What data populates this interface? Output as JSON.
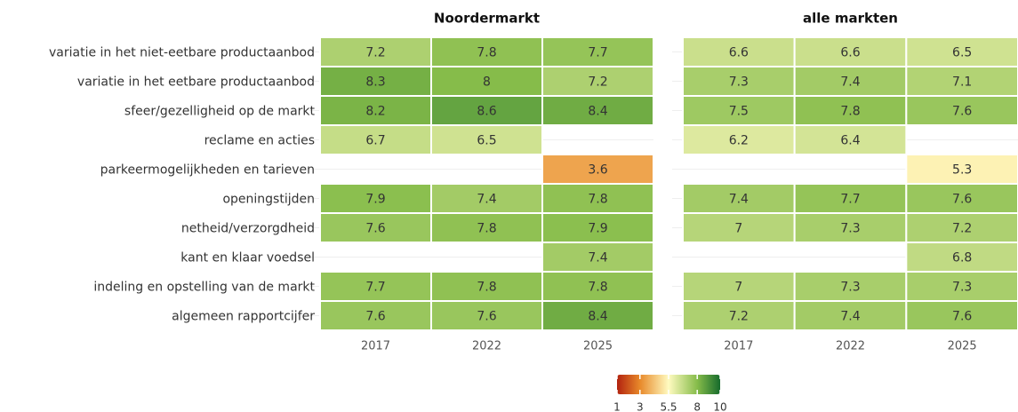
{
  "chart_data": [
    {
      "type": "heatmap",
      "title": "Noordermarkt",
      "categories": [
        "variatie in het niet-eetbare productaanbod",
        "variatie in het eetbare productaanbod",
        "sfeer/gezelligheid op de markt",
        "reclame en acties",
        "parkeermogelijkheden en tarieven",
        "openingstijden",
        "netheid/verzorgdheid",
        "kant en klaar voedsel",
        "indeling en opstelling van de markt",
        "algemeen rapportcijfer"
      ],
      "x": [
        "2017",
        "2022",
        "2025"
      ],
      "values": [
        [
          7.2,
          7.8,
          7.7
        ],
        [
          8.3,
          8,
          7.2
        ],
        [
          8.2,
          8.6,
          8.4
        ],
        [
          6.7,
          6.5,
          null
        ],
        [
          null,
          null,
          3.6
        ],
        [
          7.9,
          7.4,
          7.8
        ],
        [
          7.6,
          7.8,
          7.9
        ],
        [
          null,
          null,
          7.4
        ],
        [
          7.7,
          7.8,
          7.8
        ],
        [
          7.6,
          7.6,
          8.4
        ]
      ],
      "grid": true
    },
    {
      "type": "heatmap",
      "title": "alle markten",
      "x": [
        "2017",
        "2022",
        "2025"
      ],
      "values": [
        [
          6.6,
          6.6,
          6.5
        ],
        [
          7.3,
          7.4,
          7.1
        ],
        [
          7.5,
          7.8,
          7.6
        ],
        [
          6.2,
          6.4,
          null
        ],
        [
          null,
          null,
          5.3
        ],
        [
          7.4,
          7.7,
          7.6
        ],
        [
          7,
          7.3,
          7.2
        ],
        [
          null,
          null,
          6.8
        ],
        [
          7,
          7.3,
          7.3
        ],
        [
          7.2,
          7.4,
          7.6
        ]
      ],
      "grid": true
    }
  ],
  "legend": {
    "lim": [
      1,
      10
    ],
    "ticks": [
      1,
      3,
      5.5,
      8,
      10
    ],
    "colors": [
      "#b2220f",
      "#e8892a",
      "#fffbc0",
      "#86bc4a",
      "#166b2c"
    ]
  }
}
